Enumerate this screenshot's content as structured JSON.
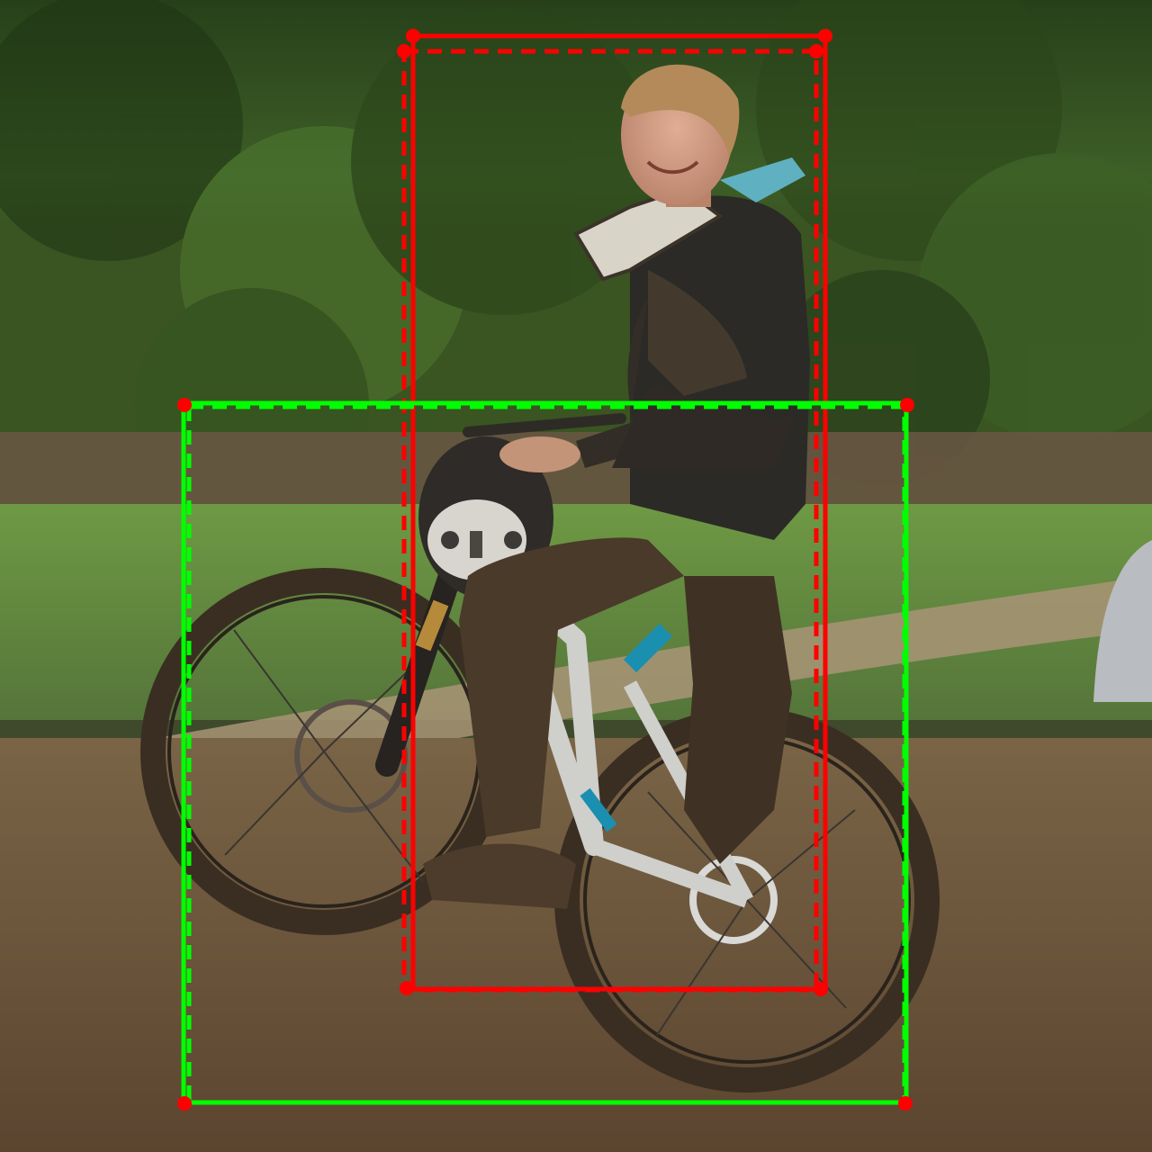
{
  "photo": {
    "subject": "person-on-mountain-bike",
    "palette": {
      "foliage_dark": "#2f4a1f",
      "foliage_light": "#5f8a3a",
      "grass": "#6f9a45",
      "mud": "#6b5236",
      "jacket": "#2b2a26",
      "bike_frame": "#d8d8d4",
      "accent_blue": "#1a8fb0"
    }
  },
  "annotations": {
    "person_color": "#ff0000",
    "bicycle_color": "#00ff00",
    "stroke_width": 5
  }
}
